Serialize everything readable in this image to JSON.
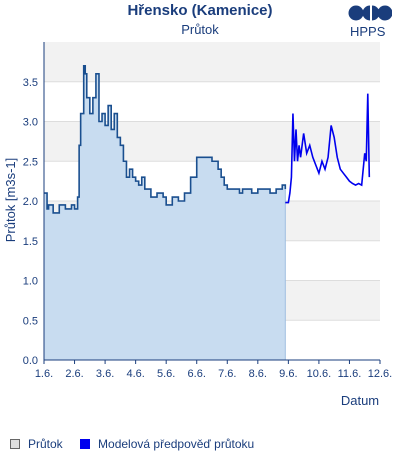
{
  "chart_data": {
    "type": "area",
    "title": "Hřensko (Kamenice)",
    "subtitle": "Průtok",
    "xlabel": "Datum",
    "ylabel": "Průtok [m3s-1]",
    "ylim": [
      0,
      4.0
    ],
    "yticks": [
      "0.0",
      "0.5",
      "1.0",
      "1.5",
      "2.0",
      "2.5",
      "3.0",
      "3.5"
    ],
    "xticks": [
      "1.6.",
      "2.6.",
      "3.6.",
      "4.6.",
      "5.6.",
      "6.6.",
      "7.6.",
      "8.6.",
      "9.6.",
      "10.6.",
      "11.6.",
      "12.6."
    ],
    "xlim_days": [
      1,
      12
    ],
    "grid": true,
    "legend_position": "bottom-left",
    "series": [
      {
        "name": "Průtok",
        "color": "#c8dcf0",
        "line_color": "#1a4f8f",
        "x": [
          1.0,
          1.1,
          1.15,
          1.3,
          1.5,
          1.7,
          1.9,
          2.0,
          2.1,
          2.15,
          2.2,
          2.3,
          2.35,
          2.4,
          2.5,
          2.6,
          2.7,
          2.8,
          2.9,
          3.0,
          3.1,
          3.2,
          3.3,
          3.4,
          3.5,
          3.6,
          3.7,
          3.8,
          3.9,
          4.0,
          4.1,
          4.2,
          4.3,
          4.5,
          4.7,
          4.9,
          5.0,
          5.2,
          5.4,
          5.6,
          5.8,
          6.0,
          6.1,
          6.3,
          6.5,
          6.7,
          6.8,
          6.9,
          7.0,
          7.2,
          7.4,
          7.5,
          7.6,
          7.8,
          8.0,
          8.2,
          8.4,
          8.6,
          8.8,
          8.9
        ],
        "y": [
          2.1,
          1.9,
          1.95,
          1.85,
          1.95,
          1.9,
          1.95,
          1.9,
          2.05,
          2.7,
          3.1,
          3.7,
          3.6,
          3.3,
          3.1,
          3.3,
          3.6,
          3.0,
          3.1,
          2.95,
          3.2,
          2.9,
          3.1,
          2.8,
          2.7,
          2.5,
          2.3,
          2.4,
          2.3,
          2.25,
          2.2,
          2.3,
          2.15,
          2.05,
          2.1,
          2.05,
          1.95,
          2.05,
          2.0,
          2.1,
          2.3,
          2.55,
          2.55,
          2.55,
          2.5,
          2.4,
          2.3,
          2.2,
          2.15,
          2.15,
          2.1,
          2.15,
          2.15,
          2.1,
          2.15,
          2.15,
          2.1,
          2.15,
          2.2,
          2.15
        ]
      },
      {
        "name": "Modelová předpověď průtoku",
        "color": "#0000ee",
        "x": [
          8.9,
          9.0,
          9.05,
          9.1,
          9.15,
          9.2,
          9.25,
          9.3,
          9.35,
          9.4,
          9.5,
          9.6,
          9.7,
          9.8,
          9.9,
          10.0,
          10.1,
          10.2,
          10.3,
          10.4,
          10.5,
          10.6,
          10.7,
          10.8,
          10.9,
          11.0,
          11.1,
          11.2,
          11.3,
          11.4,
          11.5,
          11.55,
          11.6,
          11.65
        ],
        "y": [
          1.98,
          1.98,
          2.1,
          2.3,
          3.1,
          2.5,
          2.9,
          2.5,
          2.7,
          2.55,
          2.85,
          2.6,
          2.7,
          2.55,
          2.45,
          2.35,
          2.5,
          2.4,
          2.55,
          2.95,
          2.8,
          2.55,
          2.4,
          2.35,
          2.3,
          2.25,
          2.22,
          2.2,
          2.22,
          2.2,
          2.6,
          2.5,
          3.35,
          2.3
        ]
      }
    ]
  },
  "logo": {
    "text": "HPPS",
    "icon": "hpps-logo-icon"
  },
  "legend": [
    {
      "label": "Průtok",
      "color": "#e0e0e0"
    },
    {
      "label": "Modelová předpověď průtoku",
      "color": "#0000ee"
    }
  ]
}
